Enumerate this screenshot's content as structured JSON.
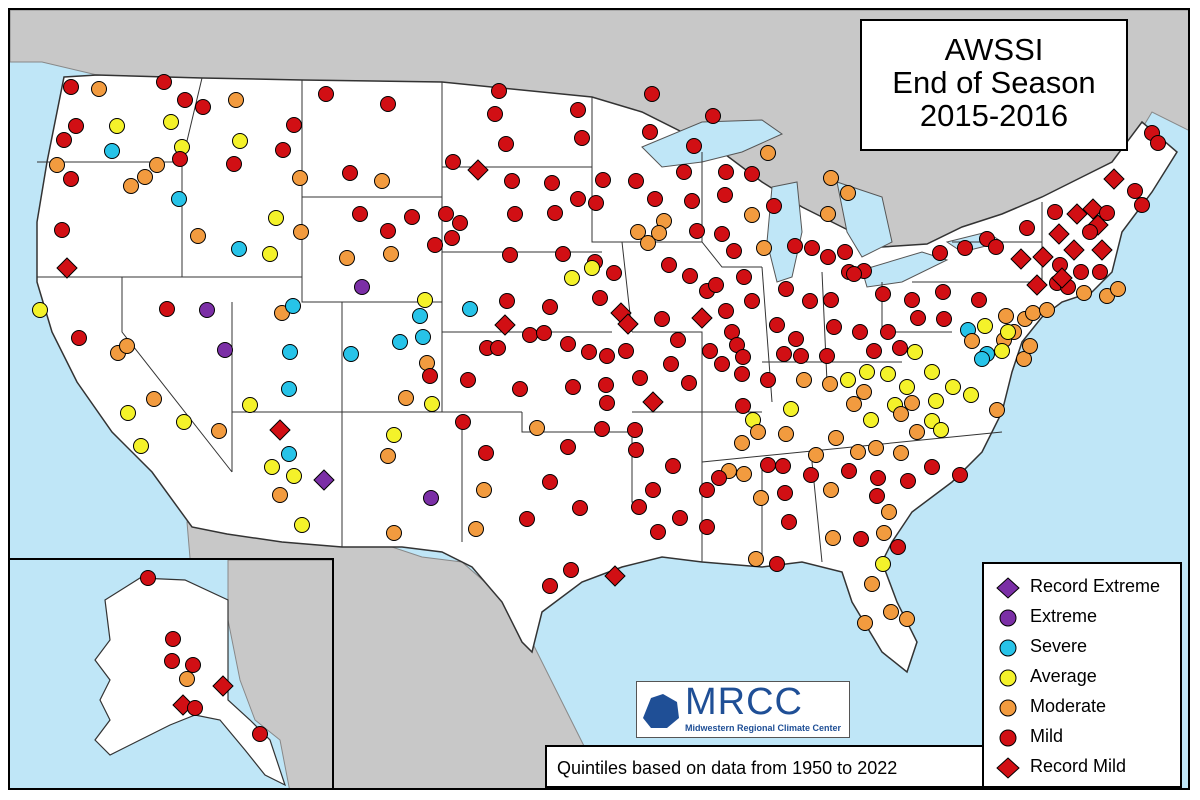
{
  "title": {
    "line1": "AWSSI",
    "line2": "End of Season",
    "line3": "2015-2016"
  },
  "footnote": "Quintiles based on data from 1950 to 2022",
  "logo": {
    "name": "MRCC",
    "subtitle": "Midwestern Regional Climate Center"
  },
  "legend": [
    {
      "label": "Record Extreme",
      "shape": "diamond",
      "color": "#7b2fa6"
    },
    {
      "label": "Extreme",
      "shape": "circle",
      "color": "#7b2fa6"
    },
    {
      "label": "Severe",
      "shape": "circle",
      "color": "#27c3e8"
    },
    {
      "label": "Average",
      "shape": "circle",
      "color": "#f4f22a"
    },
    {
      "label": "Moderate",
      "shape": "circle",
      "color": "#f29b3f"
    },
    {
      "label": "Mild",
      "shape": "circle",
      "color": "#d10f14"
    },
    {
      "label": "Record Mild",
      "shape": "diamond",
      "color": "#d10f14"
    }
  ],
  "colors": {
    "ocean": "#bfe6f7",
    "land": "#ffffff",
    "foreign_land": "#c8c8c8",
    "lakes": "#bfe6f7"
  }
}
